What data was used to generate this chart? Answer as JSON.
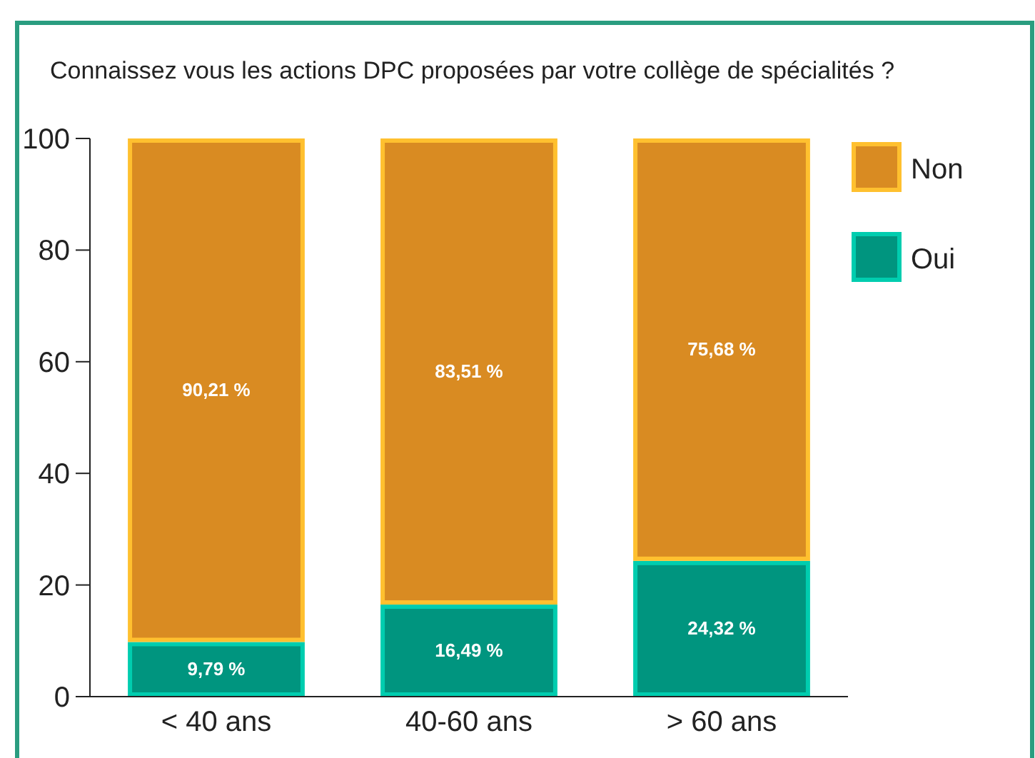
{
  "chart_data": {
    "type": "bar",
    "title": "Connaissez vous les actions DPC proposées par votre collège de spécialités ?",
    "categories": [
      "< 40 ans",
      "40-60 ans",
      "> 60 ans"
    ],
    "stacked": true,
    "ylim": [
      0,
      100
    ],
    "yticks": [
      0,
      20,
      40,
      60,
      80,
      100
    ],
    "grid": false,
    "legend": "top right",
    "series": [
      {
        "name": "Oui",
        "color": "#00957f",
        "values": [
          9.79,
          16.49,
          24.32
        ],
        "value_labels": [
          "9,79 %",
          "16,49 %",
          "24,32 %"
        ]
      },
      {
        "name": "Non",
        "color": "#d98b22",
        "values": [
          90.21,
          83.51,
          75.68
        ],
        "value_labels": [
          "90,21 %",
          "83,51 %",
          "75,68 %"
        ]
      }
    ]
  }
}
